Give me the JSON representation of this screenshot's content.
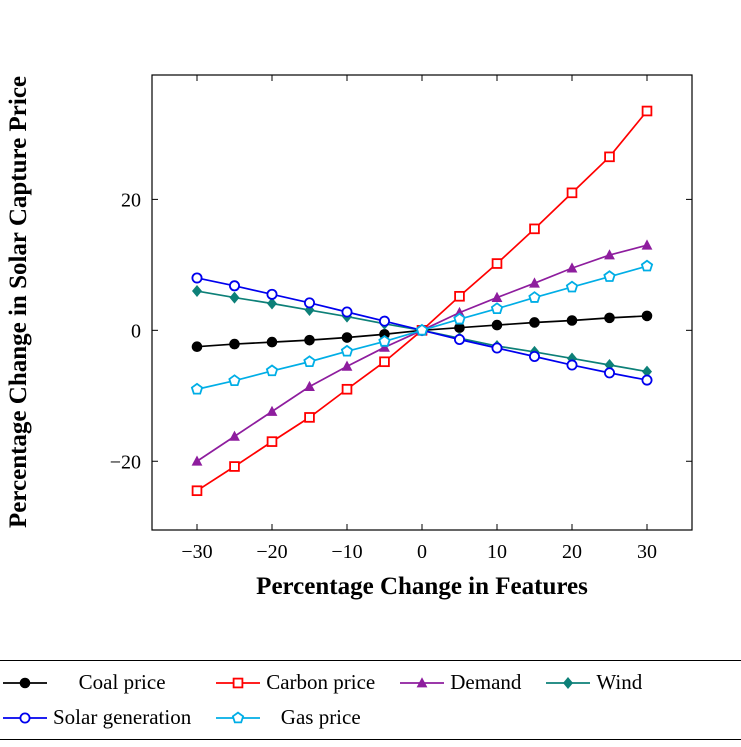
{
  "chart_data": {
    "type": "line",
    "title": "",
    "xlabel": "Percentage Change in Features",
    "ylabel": "Percentage Change in Solar Capture Price",
    "x": [
      -30,
      -25,
      -20,
      -15,
      -10,
      -5,
      0,
      5,
      10,
      15,
      20,
      25,
      30
    ],
    "xlim": [
      -36,
      36
    ],
    "ylim": [
      -30.5,
      39
    ],
    "xticks": [
      -30,
      -20,
      -10,
      0,
      10,
      20,
      30
    ],
    "yticks": [
      -20,
      0,
      20
    ],
    "grid": false,
    "legend_position": "bottom",
    "series": [
      {
        "name": "Coal price",
        "color": "#000000",
        "marker": "circle-filled",
        "values": [
          -2.5,
          -2.1,
          -1.8,
          -1.5,
          -1.1,
          -0.6,
          0,
          0.4,
          0.8,
          1.2,
          1.5,
          1.9,
          2.2
        ]
      },
      {
        "name": "Carbon price",
        "color": "#ff0000",
        "marker": "square-open",
        "values": [
          -24.5,
          -20.8,
          -17.0,
          -13.3,
          -9.0,
          -4.8,
          0,
          5.2,
          10.2,
          15.5,
          21.0,
          26.5,
          33.5
        ]
      },
      {
        "name": "Demand",
        "color": "#8e1d9e",
        "marker": "triangle-filled",
        "values": [
          -20.0,
          -16.2,
          -12.4,
          -8.6,
          -5.5,
          -2.6,
          0,
          2.7,
          5.0,
          7.2,
          9.5,
          11.5,
          13.0
        ]
      },
      {
        "name": "Wind",
        "color": "#0d8078",
        "marker": "diamond-filled",
        "values": [
          6.0,
          5.0,
          4.1,
          3.1,
          2.1,
          1.0,
          0,
          -1.2,
          -2.4,
          -3.3,
          -4.3,
          -5.3,
          -6.3
        ]
      },
      {
        "name": "Solar generation",
        "color": "#0000ee",
        "marker": "circle-open",
        "values": [
          8.0,
          6.8,
          5.5,
          4.2,
          2.8,
          1.4,
          0,
          -1.4,
          -2.7,
          -4.0,
          -5.3,
          -6.5,
          -7.6
        ]
      },
      {
        "name": "Gas price",
        "color": "#00aee6",
        "marker": "pentagon-open",
        "values": [
          -9.0,
          -7.7,
          -6.2,
          -4.8,
          -3.2,
          -1.7,
          0,
          1.7,
          3.3,
          5.0,
          6.6,
          8.2,
          9.8
        ]
      }
    ],
    "legend_rows": [
      [
        "Coal price",
        "Carbon price",
        "Demand",
        "Wind"
      ],
      [
        "Solar generation",
        "Gas price"
      ]
    ]
  }
}
